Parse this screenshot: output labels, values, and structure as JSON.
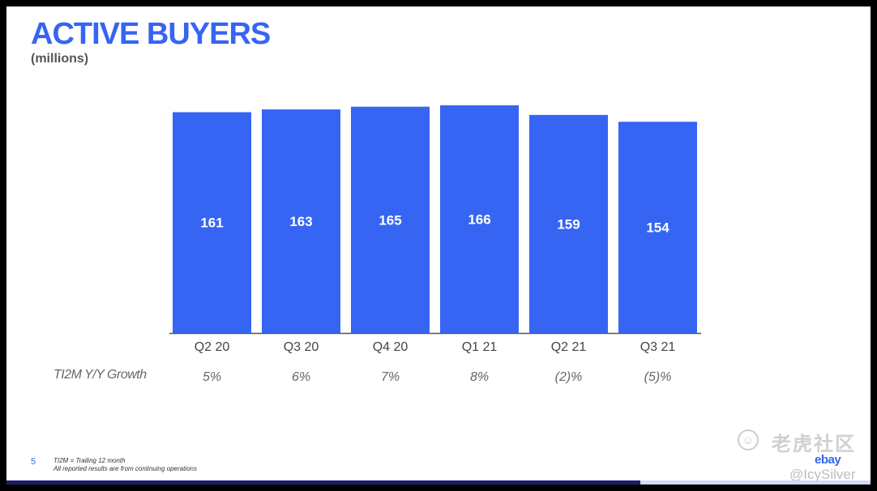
{
  "title": "ACTIVE BUYERS",
  "subtitle": "(millions)",
  "colors": {
    "bar": "#3665f3",
    "title": "#3665f3",
    "strip_dark": "#1c1c6e",
    "strip_light": "#d6d9f5"
  },
  "growth_title": "TI2M Y/Y Growth",
  "footer": {
    "page_number": "5",
    "footnote_line1": "TI2M = Trailing 12 month",
    "footnote_line2": "All reported results are from continuing operations",
    "logo": "ebay"
  },
  "watermark": {
    "icon": "tiger-icon",
    "text": "老虎社区",
    "user": "@IcySilver"
  },
  "chart_data": {
    "type": "bar",
    "categories": [
      "Q2 20",
      "Q3 20",
      "Q4 20",
      "Q1 21",
      "Q2 21",
      "Q3 21"
    ],
    "values": [
      161,
      163,
      165,
      166,
      159,
      154
    ],
    "growth": [
      "5%",
      "6%",
      "7%",
      "8%",
      "(2)%",
      "(5)%"
    ],
    "title": "ACTIVE BUYERS",
    "ylabel": "(millions)",
    "ylim": [
      0,
      166
    ],
    "grid": false,
    "legend": "none",
    "bar_color": "#3665f3"
  }
}
